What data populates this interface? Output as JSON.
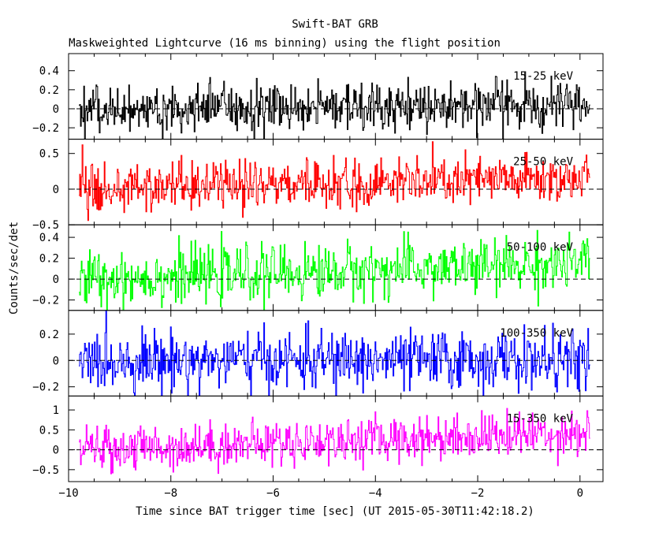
{
  "title": "Swift-BAT GRB",
  "subtitle": "Maskweighted Lightcurve (16 ms binning) using the flight position",
  "chart_data": {
    "type": "line",
    "title": "Swift-BAT GRB",
    "subtitle": "Maskweighted Lightcurve (16 ms binning) using the flight position",
    "xlabel": "Time since BAT trigger time [sec] (UT 2015-05-30T11:42:18.2)",
    "ylabel": "Counts/sec/det",
    "xlim": [
      -10.0,
      0.45
    ],
    "xticks": [
      -10,
      -8,
      -6,
      -4,
      -2,
      0
    ],
    "xtick_labels": [
      "−10",
      "−8",
      "−6",
      "−4",
      "−2",
      "0"
    ],
    "bin_width_sec": 0.016,
    "data_range": [
      -9.8,
      0.2
    ],
    "grid": false,
    "zero_line": "dashed",
    "panels": [
      {
        "name": "15-25 keV",
        "color": "#000000",
        "ylim": [
          -0.32,
          0.58
        ],
        "yticks": [
          -0.2,
          0,
          0.2,
          0.4
        ],
        "ytick_labels": [
          "−0.2",
          "0",
          "0.2",
          "0.4"
        ],
        "noise_amplitude": 0.13,
        "trend": [
          0.0,
          0.05
        ]
      },
      {
        "name": "25-50 keV",
        "color": "#ff0000",
        "ylim": [
          -0.5,
          0.7
        ],
        "yticks": [
          -0.5,
          0,
          0.5
        ],
        "ytick_labels": [
          "−0.5",
          "0",
          "0.5"
        ],
        "noise_amplitude": 0.17,
        "trend": [
          0.0,
          0.15
        ]
      },
      {
        "name": "50-100 keV",
        "color": "#00ff00",
        "ylim": [
          -0.3,
          0.52
        ],
        "yticks": [
          -0.2,
          0,
          0.2,
          0.4
        ],
        "ytick_labels": [
          "−0.2",
          "0",
          "0.2",
          "0.4"
        ],
        "noise_amplitude": 0.13,
        "trend": [
          0.0,
          0.15
        ]
      },
      {
        "name": "100-350 keV",
        "color": "#0000ff",
        "ylim": [
          -0.27,
          0.38
        ],
        "yticks": [
          -0.2,
          0,
          0.2
        ],
        "ytick_labels": [
          "−0.2",
          "0",
          "0.2"
        ],
        "noise_amplitude": 0.11,
        "trend": [
          0.0,
          0.0
        ]
      },
      {
        "name": "15-350 keV",
        "color": "#ff00ff",
        "ylim": [
          -0.8,
          1.35
        ],
        "yticks": [
          -0.5,
          0,
          0.5,
          1
        ],
        "ytick_labels": [
          "−0.5",
          "0",
          "0.5",
          "1"
        ],
        "noise_amplitude": 0.28,
        "trend": [
          0.0,
          0.45
        ]
      }
    ]
  }
}
